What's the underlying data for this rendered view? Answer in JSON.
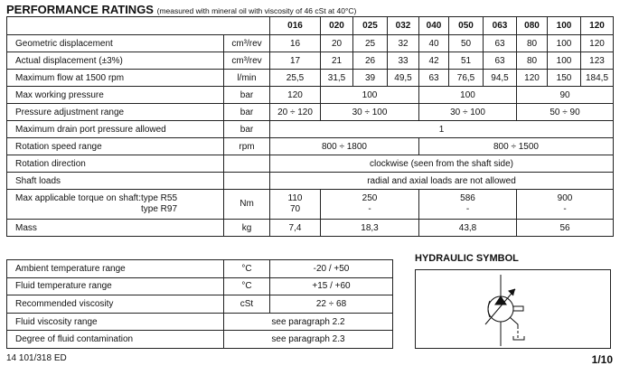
{
  "title": "PERFORMANCE RATINGS",
  "subtitle": "(measured with mineral oil with viscosity of 46 cSt at 40°C)",
  "sizes": [
    "016",
    "020",
    "025",
    "032",
    "040",
    "050",
    "063",
    "080",
    "100",
    "120"
  ],
  "rows": {
    "geo": {
      "label": "Geometric displacement",
      "unit": "cm³/rev",
      "values": [
        "16",
        "20",
        "25",
        "32",
        "40",
        "50",
        "63",
        "80",
        "100",
        "120"
      ]
    },
    "act": {
      "label": "Actual displacement (±3%)",
      "unit": "cm³/rev",
      "values": [
        "17",
        "21",
        "26",
        "33",
        "42",
        "51",
        "63",
        "80",
        "100",
        "123"
      ]
    },
    "flow": {
      "label": "Maximum flow at 1500 rpm",
      "unit": "l/min",
      "values": [
        "25,5",
        "31,5",
        "39",
        "49,5",
        "63",
        "76,5",
        "94,5",
        "120",
        "150",
        "184,5"
      ]
    },
    "maxp": {
      "label": "Max working pressure",
      "unit": "bar",
      "values": [
        "120",
        "100",
        "100",
        "90"
      ]
    },
    "padj": {
      "label": "Pressure adjustment range",
      "unit": "bar",
      "values": [
        "20 ÷ 120",
        "30 ÷ 100",
        "30 ÷ 100",
        "50 ÷ 90"
      ]
    },
    "drain": {
      "label": "Maximum drain port pressure allowed",
      "unit": "bar",
      "value": "1"
    },
    "speed": {
      "label": "Rotation speed range",
      "unit": "rpm",
      "values": [
        "800 ÷ 1800",
        "800 ÷ 1500"
      ]
    },
    "dir": {
      "label": "Rotation direction",
      "unit": "",
      "value": "clockwise (seen from the shaft side)"
    },
    "shaft": {
      "label": "Shaft loads",
      "unit": "",
      "value": "radial and axial loads are not allowed"
    },
    "torque": {
      "label": "Max applicable torque on shaft:",
      "type1": "type R55",
      "type2": "type R97",
      "unit": "Nm",
      "r55": [
        "110",
        "250",
        "586",
        "900"
      ],
      "r97": [
        "70",
        "-",
        "-",
        "-"
      ]
    },
    "mass": {
      "label": "Mass",
      "unit": "kg",
      "values": [
        "7,4",
        "18,3",
        "43,8",
        "56"
      ]
    }
  },
  "env": [
    {
      "label": "Ambient temperature range",
      "unit": "°C",
      "value": "-20 / +50"
    },
    {
      "label": "Fluid temperature range",
      "unit": "°C",
      "value": "+15 / +60"
    },
    {
      "label": "Recommended viscosity",
      "unit": "cSt",
      "value": "22 ÷ 68"
    },
    {
      "label": "Fluid viscosity range",
      "value": "see paragraph 2.2"
    },
    {
      "label": "Degree of fluid contamination",
      "value": "see paragraph 2.3"
    }
  ],
  "hydraulic_title": "HYDRAULIC SYMBOL",
  "footer": {
    "doc": "14 101/318 ED",
    "page": "1/10"
  }
}
